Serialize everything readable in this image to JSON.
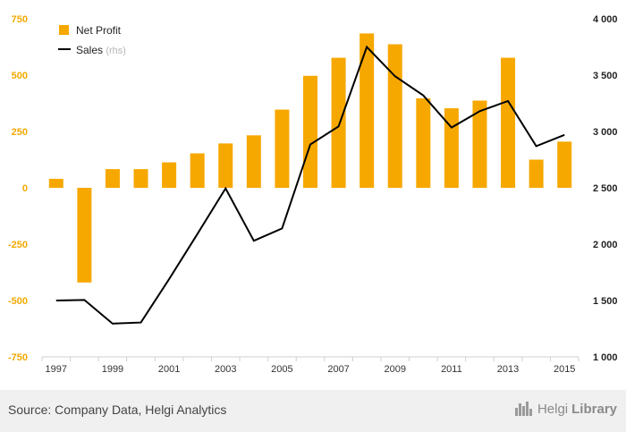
{
  "chart_data": {
    "type": "bar+line",
    "categories": [
      "1997",
      "1998",
      "1999",
      "2000",
      "2001",
      "2002",
      "2003",
      "2004",
      "2005",
      "2006",
      "2007",
      "2008",
      "2009",
      "2010",
      "2011",
      "2012",
      "2013",
      "2014",
      "2015"
    ],
    "x_tick_labels": [
      "1997",
      "1999",
      "2001",
      "2003",
      "2005",
      "2007",
      "2009",
      "2011",
      "2013",
      "2015"
    ],
    "series": [
      {
        "name": "Net Profit",
        "type": "bar",
        "axis": "left",
        "color": "#f7a800",
        "values": [
          40,
          -420,
          83,
          83,
          113,
          153,
          197,
          233,
          347,
          497,
          577,
          685,
          637,
          397,
          353,
          387,
          577,
          125,
          205
        ]
      },
      {
        "name": "Sales",
        "name_suffix": "(rhs)",
        "type": "line",
        "axis": "right",
        "color": "#000000",
        "values": [
          1500,
          1505,
          1295,
          1305,
          1690,
          2090,
          2495,
          2030,
          2140,
          2885,
          3045,
          3750,
          3490,
          3320,
          3035,
          3180,
          3270,
          2870,
          2970
        ]
      }
    ],
    "ylim_left": [
      -750,
      750
    ],
    "left_ticks": [
      "750",
      "500",
      "250",
      "0",
      "-250",
      "-500",
      "-750"
    ],
    "ylim_right": [
      1000,
      4000
    ],
    "right_ticks": [
      "4 000",
      "3 500",
      "3 000",
      "2 500",
      "2 000",
      "1 500",
      "1 000"
    ],
    "legend_position": "top-left",
    "grid": false
  },
  "footer": {
    "source": "Source: Company Data, Helgi Analytics",
    "brand_a": "Helgi",
    "brand_b": "Library"
  }
}
